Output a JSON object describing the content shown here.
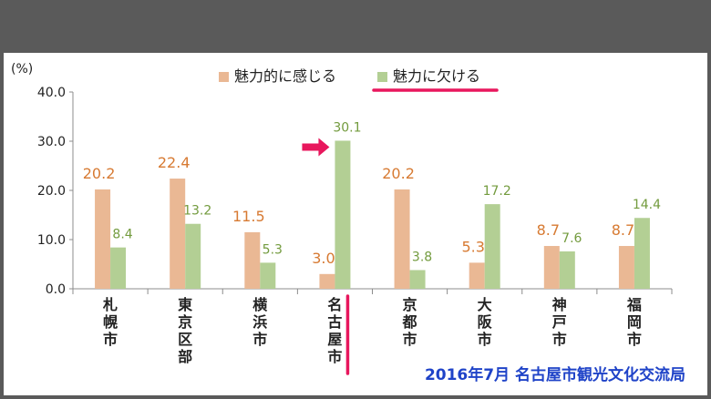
{
  "colors": {
    "frame_bg": "#5a5a5a",
    "panel_bg": "#ffffff",
    "series_attractive": "#eab894",
    "series_not_attractive": "#b3cf94",
    "label_attractive": "#d77a32",
    "label_not_attractive": "#739b3e",
    "highlight": "#e8175d",
    "source_text": "#1f43c8",
    "axis": "#8c8c8c",
    "text": "#222222"
  },
  "source": "2016年7月 名古屋市観光文化交流局",
  "chart_data": {
    "type": "bar",
    "ylabel": "(%)",
    "ylim": [
      0,
      40
    ],
    "yticks": [
      "0.0",
      "10.0",
      "20.0",
      "30.0",
      "40.0"
    ],
    "grid": false,
    "legend_position": "top",
    "categories": [
      "札幌市",
      "東京区部",
      "横浜市",
      "名古屋市",
      "京都市",
      "大阪市",
      "神戸市",
      "福岡市"
    ],
    "series": [
      {
        "name": "魅力的に感じる",
        "values": [
          20.2,
          22.4,
          11.5,
          3.0,
          20.2,
          5.3,
          8.7,
          8.7
        ],
        "labels": [
          "20.2",
          "22.4",
          "11.5",
          "3.0",
          "20.2",
          "5.3",
          "8.7",
          "8.7"
        ]
      },
      {
        "name": "魅力に欠ける",
        "values": [
          8.4,
          13.2,
          5.3,
          30.1,
          3.8,
          17.2,
          7.6,
          14.4
        ],
        "labels": [
          "8.4",
          "13.2",
          "5.3",
          "30.1",
          "3.8",
          "17.2",
          "7.6",
          "14.4"
        ]
      }
    ],
    "highlight": {
      "category": "名古屋市",
      "arrow_marks_series": "魅力に欠ける",
      "legend_underline_series": "魅力に欠ける"
    }
  }
}
